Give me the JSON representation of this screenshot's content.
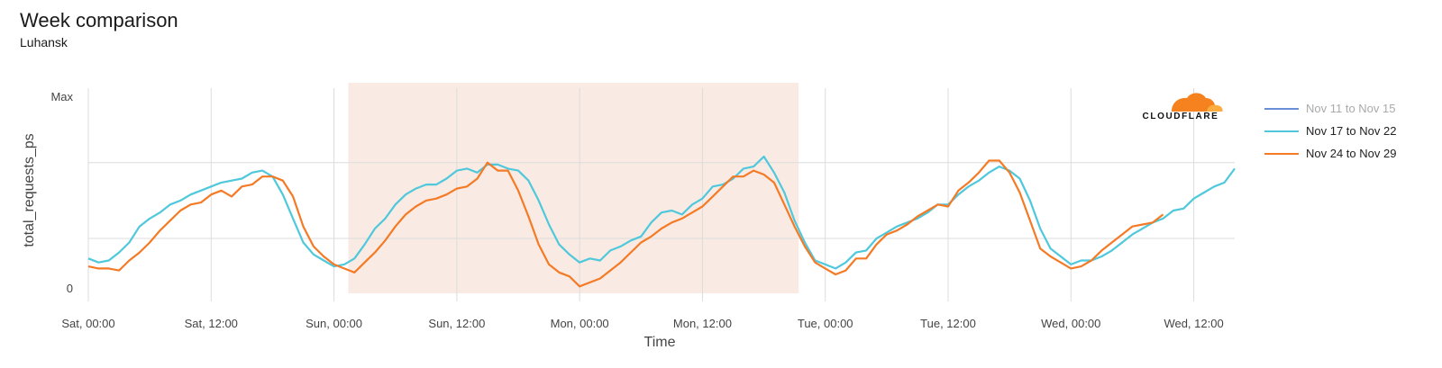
{
  "header": {
    "title": "Week comparison",
    "subtitle": "Luhansk"
  },
  "brand": {
    "logo_text": "CLOUDFLARE",
    "logo_colors": [
      "#f6821f",
      "#fbad41"
    ]
  },
  "chart_data": {
    "type": "line",
    "title": "Week comparison",
    "subtitle": "Luhansk",
    "xlabel": "Time",
    "ylabel": "total_requests_ps",
    "y_tick_labels": [
      "Max",
      "0"
    ],
    "ylim": [
      0,
      1
    ],
    "x_tick_labels": [
      "Sat, 00:00",
      "Sat, 12:00",
      "Sun, 00:00",
      "Sun, 12:00",
      "Mon, 00:00",
      "Mon, 12:00",
      "Tue, 00:00",
      "Tue, 12:00",
      "Wed, 00:00",
      "Wed, 12:00"
    ],
    "x_tick_hours": [
      0,
      12,
      24,
      36,
      48,
      60,
      72,
      84,
      96,
      108
    ],
    "xlim_hours": [
      0,
      112
    ],
    "highlight_range_hours": [
      25.4,
      69.4
    ],
    "highlight_color": "#f9ebe3",
    "grid": true,
    "legend_position": "right",
    "series": [
      {
        "name": "Nov 11 to Nov 15",
        "color": "#6b8fd6",
        "dimmed": true,
        "points": []
      },
      {
        "name": "Nov 17 to Nov 22",
        "color": "#4fc8dc",
        "points": [
          [
            0,
            0.17
          ],
          [
            1,
            0.15
          ],
          [
            2,
            0.16
          ],
          [
            3,
            0.2
          ],
          [
            4,
            0.25
          ],
          [
            5,
            0.33
          ],
          [
            6,
            0.37
          ],
          [
            7,
            0.4
          ],
          [
            8,
            0.44
          ],
          [
            9,
            0.46
          ],
          [
            10,
            0.49
          ],
          [
            11,
            0.51
          ],
          [
            12,
            0.53
          ],
          [
            13,
            0.55
          ],
          [
            14,
            0.56
          ],
          [
            15,
            0.57
          ],
          [
            16,
            0.6
          ],
          [
            17,
            0.61
          ],
          [
            18,
            0.58
          ],
          [
            19,
            0.49
          ],
          [
            20,
            0.37
          ],
          [
            21,
            0.25
          ],
          [
            22,
            0.19
          ],
          [
            23,
            0.16
          ],
          [
            24,
            0.13
          ],
          [
            25,
            0.14
          ],
          [
            26,
            0.17
          ],
          [
            27,
            0.24
          ],
          [
            28,
            0.32
          ],
          [
            29,
            0.37
          ],
          [
            30,
            0.44
          ],
          [
            31,
            0.49
          ],
          [
            32,
            0.52
          ],
          [
            33,
            0.54
          ],
          [
            34,
            0.54
          ],
          [
            35,
            0.57
          ],
          [
            36,
            0.61
          ],
          [
            37,
            0.62
          ],
          [
            38,
            0.6
          ],
          [
            39,
            0.64
          ],
          [
            40,
            0.64
          ],
          [
            41,
            0.62
          ],
          [
            42,
            0.61
          ],
          [
            43,
            0.56
          ],
          [
            44,
            0.46
          ],
          [
            45,
            0.34
          ],
          [
            46,
            0.24
          ],
          [
            47,
            0.19
          ],
          [
            48,
            0.15
          ],
          [
            49,
            0.17
          ],
          [
            50,
            0.16
          ],
          [
            51,
            0.21
          ],
          [
            52,
            0.23
          ],
          [
            53,
            0.26
          ],
          [
            54,
            0.28
          ],
          [
            55,
            0.35
          ],
          [
            56,
            0.4
          ],
          [
            57,
            0.41
          ],
          [
            58,
            0.39
          ],
          [
            59,
            0.44
          ],
          [
            60,
            0.47
          ],
          [
            61,
            0.53
          ],
          [
            62,
            0.54
          ],
          [
            63,
            0.57
          ],
          [
            64,
            0.62
          ],
          [
            65,
            0.63
          ],
          [
            66,
            0.68
          ],
          [
            67,
            0.6
          ],
          [
            68,
            0.5
          ],
          [
            69,
            0.36
          ],
          [
            70,
            0.25
          ],
          [
            71,
            0.16
          ],
          [
            72,
            0.14
          ],
          [
            73,
            0.12
          ],
          [
            74,
            0.15
          ],
          [
            75,
            0.2
          ],
          [
            76,
            0.21
          ],
          [
            77,
            0.27
          ],
          [
            78,
            0.3
          ],
          [
            79,
            0.33
          ],
          [
            80,
            0.35
          ],
          [
            81,
            0.37
          ],
          [
            82,
            0.4
          ],
          [
            83,
            0.44
          ],
          [
            84,
            0.44
          ],
          [
            85,
            0.49
          ],
          [
            86,
            0.53
          ],
          [
            87,
            0.56
          ],
          [
            88,
            0.6
          ],
          [
            89,
            0.63
          ],
          [
            90,
            0.61
          ],
          [
            91,
            0.57
          ],
          [
            92,
            0.46
          ],
          [
            93,
            0.32
          ],
          [
            94,
            0.22
          ],
          [
            95,
            0.18
          ],
          [
            96,
            0.14
          ],
          [
            97,
            0.16
          ],
          [
            98,
            0.16
          ],
          [
            99,
            0.18
          ],
          [
            100,
            0.21
          ],
          [
            101,
            0.25
          ],
          [
            102,
            0.29
          ],
          [
            103,
            0.32
          ],
          [
            104,
            0.35
          ],
          [
            105,
            0.37
          ],
          [
            106,
            0.41
          ],
          [
            107,
            0.42
          ],
          [
            108,
            0.47
          ],
          [
            109,
            0.5
          ],
          [
            110,
            0.53
          ],
          [
            111,
            0.55
          ],
          [
            112,
            0.62
          ]
        ]
      },
      {
        "name": "Nov 24 to Nov 29",
        "color": "#f47a26",
        "points": [
          [
            0,
            0.13
          ],
          [
            1,
            0.12
          ],
          [
            2,
            0.12
          ],
          [
            3,
            0.11
          ],
          [
            4,
            0.16
          ],
          [
            5,
            0.2
          ],
          [
            6,
            0.25
          ],
          [
            7,
            0.31
          ],
          [
            8,
            0.36
          ],
          [
            9,
            0.41
          ],
          [
            10,
            0.44
          ],
          [
            11,
            0.45
          ],
          [
            12,
            0.49
          ],
          [
            13,
            0.51
          ],
          [
            14,
            0.48
          ],
          [
            15,
            0.53
          ],
          [
            16,
            0.54
          ],
          [
            17,
            0.58
          ],
          [
            18,
            0.58
          ],
          [
            19,
            0.56
          ],
          [
            20,
            0.48
          ],
          [
            21,
            0.33
          ],
          [
            22,
            0.23
          ],
          [
            23,
            0.18
          ],
          [
            24,
            0.14
          ],
          [
            25,
            0.12
          ],
          [
            26,
            0.1
          ],
          [
            27,
            0.15
          ],
          [
            28,
            0.2
          ],
          [
            29,
            0.26
          ],
          [
            30,
            0.33
          ],
          [
            31,
            0.39
          ],
          [
            32,
            0.43
          ],
          [
            33,
            0.46
          ],
          [
            34,
            0.47
          ],
          [
            35,
            0.49
          ],
          [
            36,
            0.52
          ],
          [
            37,
            0.53
          ],
          [
            38,
            0.57
          ],
          [
            39,
            0.65
          ],
          [
            40,
            0.61
          ],
          [
            41,
            0.61
          ],
          [
            42,
            0.51
          ],
          [
            43,
            0.38
          ],
          [
            44,
            0.24
          ],
          [
            45,
            0.14
          ],
          [
            46,
            0.1
          ],
          [
            47,
            0.08
          ],
          [
            48,
            0.03
          ],
          [
            49,
            0.05
          ],
          [
            50,
            0.07
          ],
          [
            51,
            0.11
          ],
          [
            52,
            0.15
          ],
          [
            53,
            0.2
          ],
          [
            54,
            0.25
          ],
          [
            55,
            0.28
          ],
          [
            56,
            0.32
          ],
          [
            57,
            0.35
          ],
          [
            58,
            0.37
          ],
          [
            59,
            0.4
          ],
          [
            60,
            0.43
          ],
          [
            61,
            0.48
          ],
          [
            62,
            0.53
          ],
          [
            63,
            0.58
          ],
          [
            64,
            0.58
          ],
          [
            65,
            0.61
          ],
          [
            66,
            0.59
          ],
          [
            67,
            0.55
          ],
          [
            68,
            0.44
          ],
          [
            69,
            0.33
          ],
          [
            70,
            0.23
          ],
          [
            71,
            0.15
          ],
          [
            72,
            0.12
          ],
          [
            73,
            0.09
          ],
          [
            74,
            0.11
          ],
          [
            75,
            0.17
          ],
          [
            76,
            0.17
          ],
          [
            77,
            0.24
          ],
          [
            78,
            0.29
          ],
          [
            79,
            0.31
          ],
          [
            80,
            0.34
          ],
          [
            81,
            0.38
          ],
          [
            82,
            0.41
          ],
          [
            83,
            0.44
          ],
          [
            84,
            0.43
          ],
          [
            85,
            0.51
          ],
          [
            86,
            0.55
          ],
          [
            87,
            0.6
          ],
          [
            88,
            0.66
          ],
          [
            89,
            0.66
          ],
          [
            90,
            0.6
          ],
          [
            91,
            0.5
          ],
          [
            92,
            0.36
          ],
          [
            93,
            0.22
          ],
          [
            94,
            0.18
          ],
          [
            95,
            0.15
          ],
          [
            96,
            0.12
          ],
          [
            97,
            0.13
          ],
          [
            98,
            0.16
          ],
          [
            99,
            0.21
          ],
          [
            100,
            0.25
          ],
          [
            101,
            0.29
          ],
          [
            102,
            0.33
          ],
          [
            103,
            0.34
          ],
          [
            104,
            0.35
          ],
          [
            105,
            0.39
          ]
        ]
      }
    ]
  }
}
